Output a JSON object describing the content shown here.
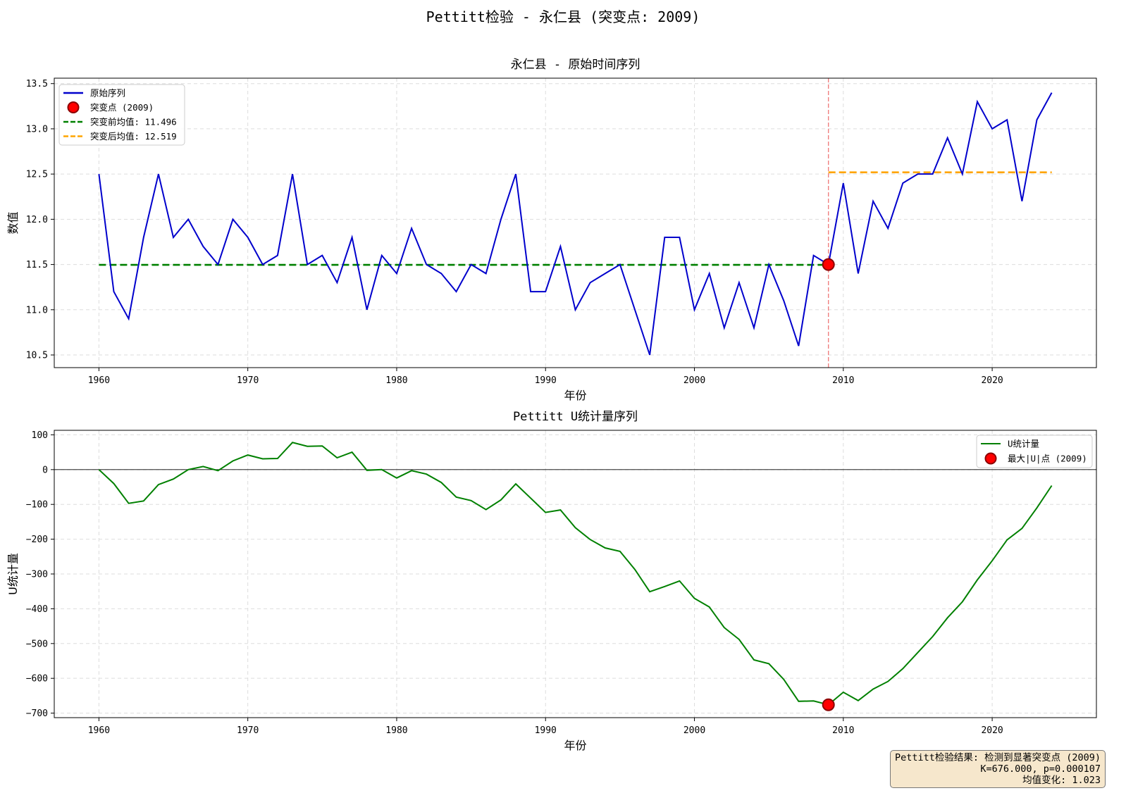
{
  "suptitle": "Pettitt检验 - 永仁县 (突变点: 2009)",
  "result_box": {
    "line1": "Pettitt检验结果: 检测到显著突变点 (2009)",
    "line2": "K=676.000, p=0.000107",
    "line3": "均值变化: 1.023"
  },
  "colors": {
    "series": "#0000cc",
    "before_mean": "#008000",
    "after_mean": "#ffa500",
    "change_line": "#f08080",
    "point": "#ff0000",
    "u_series": "#008000"
  },
  "chart_data": [
    {
      "type": "line",
      "title": "永仁县 - 原始时间序列",
      "xlabel": "年份",
      "ylabel": "数值",
      "xlim": [
        1957,
        2027
      ],
      "ylim": [
        10.36,
        13.56
      ],
      "xticks": [
        1960,
        1970,
        1980,
        1990,
        2000,
        2010,
        2020
      ],
      "yticks": [
        10.5,
        11.0,
        11.5,
        12.0,
        12.5,
        13.0,
        13.5
      ],
      "grid": true,
      "legend_position": "top-left",
      "x": [
        1960,
        1961,
        1962,
        1963,
        1964,
        1965,
        1966,
        1967,
        1968,
        1969,
        1970,
        1971,
        1972,
        1973,
        1974,
        1975,
        1976,
        1977,
        1978,
        1979,
        1980,
        1981,
        1982,
        1983,
        1984,
        1985,
        1986,
        1987,
        1988,
        1989,
        1990,
        1991,
        1992,
        1993,
        1994,
        1995,
        1996,
        1997,
        1998,
        1999,
        2000,
        2001,
        2002,
        2003,
        2004,
        2005,
        2006,
        2007,
        2008,
        2009,
        2010,
        2011,
        2012,
        2013,
        2014,
        2015,
        2016,
        2017,
        2018,
        2019,
        2020,
        2021,
        2022,
        2023,
        2024
      ],
      "series": [
        {
          "name": "原始序列",
          "values": [
            12.5,
            11.2,
            10.9,
            11.8,
            12.5,
            11.8,
            12.0,
            11.7,
            11.5,
            12.0,
            11.8,
            11.5,
            11.6,
            12.5,
            11.5,
            11.6,
            11.3,
            11.8,
            11.0,
            11.6,
            11.4,
            11.9,
            11.5,
            11.4,
            11.2,
            11.5,
            11.4,
            12.0,
            12.5,
            11.2,
            11.2,
            11.7,
            11.0,
            11.3,
            11.4,
            11.5,
            11.0,
            10.5,
            11.8,
            11.8,
            11.0,
            11.4,
            10.8,
            11.3,
            10.8,
            11.5,
            11.1,
            10.6,
            11.6,
            11.5,
            12.4,
            11.4,
            12.2,
            11.9,
            12.4,
            12.5,
            12.5,
            12.9,
            12.5,
            13.3,
            13.0,
            13.1,
            12.2,
            13.1,
            13.4
          ]
        }
      ],
      "change_point": {
        "label": "突变点 (2009)",
        "x": 2009,
        "y": 11.5
      },
      "before_mean": {
        "label": "突变前均值: 11.496",
        "value": 11.496,
        "x_range": [
          1960,
          2009
        ]
      },
      "after_mean": {
        "label": "突变后均值: 12.519",
        "value": 12.519,
        "x_range": [
          2009,
          2024
        ]
      }
    },
    {
      "type": "line",
      "title": "Pettitt U统计量序列",
      "xlabel": "年份",
      "ylabel": "U统计量",
      "xlim": [
        1957,
        2027
      ],
      "ylim": [
        -713,
        113
      ],
      "xticks": [
        1960,
        1970,
        1980,
        1990,
        2000,
        2010,
        2020
      ],
      "yticks": [
        100,
        0,
        -100,
        -200,
        -300,
        -400,
        -500,
        -600,
        -700
      ],
      "grid": true,
      "legend_position": "top-right",
      "x": [
        1960,
        1961,
        1962,
        1963,
        1964,
        1965,
        1966,
        1967,
        1968,
        1969,
        1970,
        1971,
        1972,
        1973,
        1974,
        1975,
        1976,
        1977,
        1978,
        1979,
        1980,
        1981,
        1982,
        1983,
        1984,
        1985,
        1986,
        1987,
        1988,
        1989,
        1990,
        1991,
        1992,
        1993,
        1994,
        1995,
        1996,
        1997,
        1998,
        1999,
        2000,
        2001,
        2002,
        2003,
        2004,
        2005,
        2006,
        2007,
        2008,
        2009,
        2010,
        2011,
        2012,
        2013,
        2014,
        2015,
        2016,
        2017,
        2018,
        2019,
        2020,
        2021,
        2022,
        2023,
        2024
      ],
      "series": [
        {
          "name": "U统计量",
          "values": [
            0,
            -40,
            -97,
            -90,
            -43,
            -27,
            0,
            9,
            -3,
            25,
            42,
            31,
            32,
            78,
            67,
            68,
            34,
            50,
            -2,
            0,
            -24,
            -3,
            -13,
            -37,
            -79,
            -89,
            -115,
            -87,
            -41,
            -82,
            -123,
            -116,
            -167,
            -201,
            -225,
            -235,
            -287,
            -351,
            -336,
            -320,
            -370,
            -395,
            -454,
            -488,
            -547,
            -558,
            -603,
            -666,
            -665,
            -676,
            -640,
            -664,
            -631,
            -609,
            -572,
            -526,
            -480,
            -426,
            -380,
            -317,
            -262,
            -202,
            -169,
            -110,
            -46
          ]
        }
      ],
      "max_point": {
        "label": "最大|U|点 (2009)",
        "x": 2009,
        "y": -676
      }
    }
  ]
}
